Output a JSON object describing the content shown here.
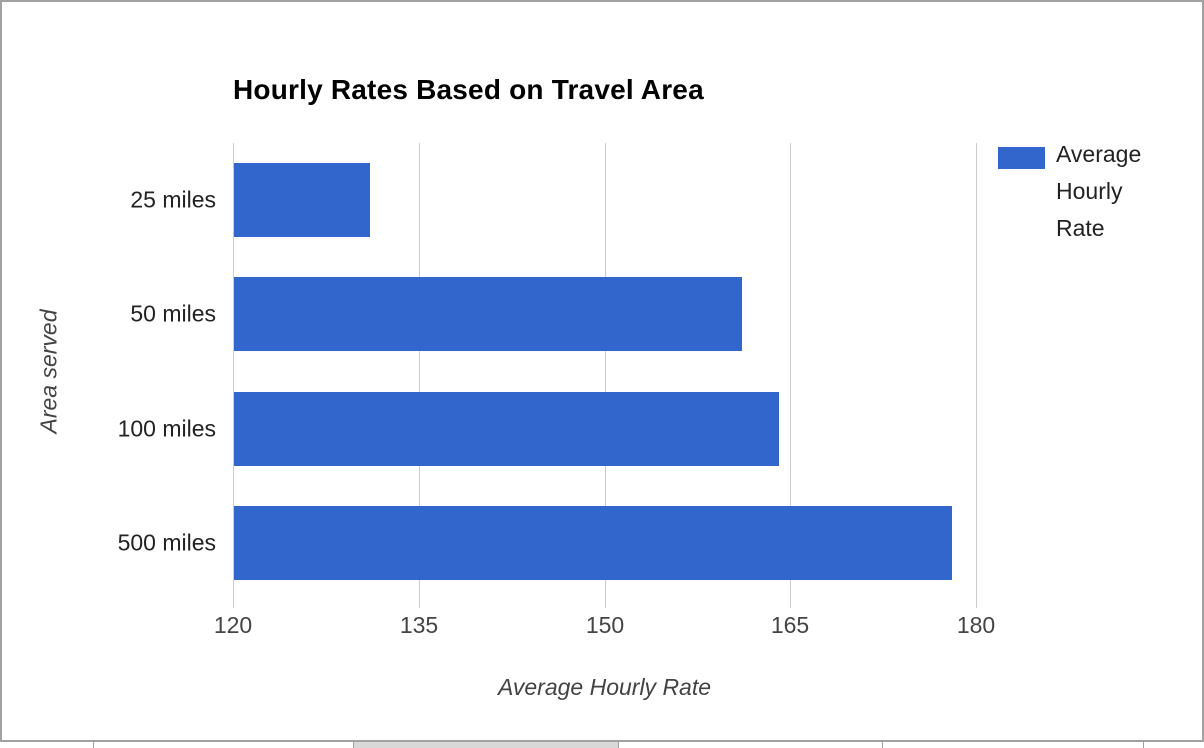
{
  "chart": {
    "title": "Hourly Rates Based on Travel Area",
    "x_axis_title": "Average Hourly Rate",
    "y_axis_title": "Area served",
    "legend": {
      "label": "Average Hourly Rate",
      "swatch_color": "#3366cc"
    }
  },
  "chart_data": {
    "type": "bar",
    "orientation": "horizontal",
    "title": "Hourly Rates Based on Travel Area",
    "categories": [
      "25 miles",
      "50 miles",
      "100 miles",
      "500 miles"
    ],
    "series": [
      {
        "name": "Average Hourly Rate",
        "color": "#3366cc",
        "values": [
          131,
          161,
          164,
          178
        ]
      }
    ],
    "xlabel": "Average Hourly Rate",
    "ylabel": "Area served",
    "xlim": [
      120,
      180
    ],
    "xticks": [
      120,
      135,
      150,
      165,
      180
    ],
    "grid": true,
    "legend_position": "right"
  },
  "colors": {
    "bar": "#3366cc",
    "gridline": "#cccccc",
    "frame_border": "#a1a1a1",
    "tick_label": "#444444",
    "category_label": "#222222",
    "axis_title": "#434343",
    "title": "#000000"
  }
}
